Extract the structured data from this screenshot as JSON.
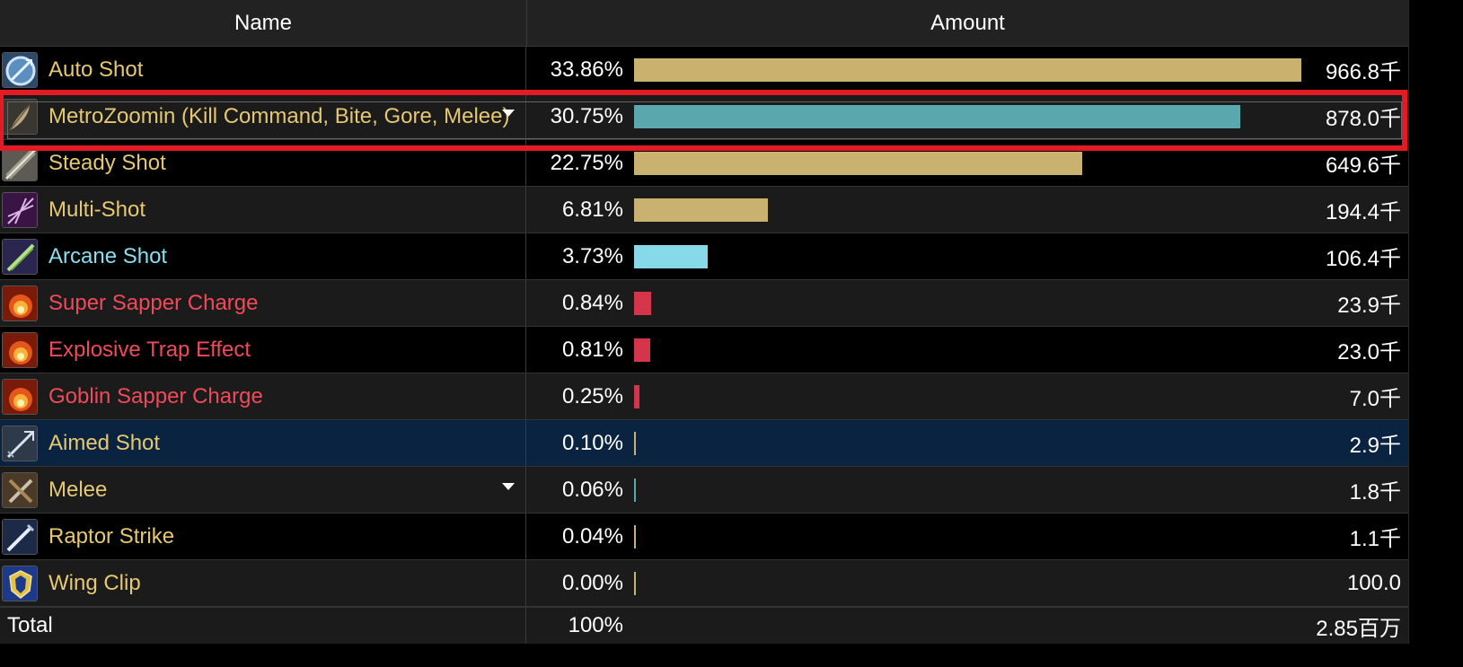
{
  "header": {
    "name": "Name",
    "amount": "Amount"
  },
  "rows": [
    {
      "name": "Auto Shot",
      "pct": "33.86%",
      "value": "966.8千",
      "color": "#e5c870",
      "bar_color": "#c9b16f",
      "fraction": 1.0,
      "icon": "auto-shot-icon",
      "style": "odd"
    },
    {
      "name": "MetroZoomin (Kill Command, Bite, Gore, Melee)",
      "pct": "30.75%",
      "value": "878.0千",
      "color": "#e5c870",
      "bar_color": "#5aa7ad",
      "fraction": 0.908,
      "icon": "pet-feather-icon",
      "style": "even",
      "caret": true
    },
    {
      "name": "Steady Shot",
      "pct": "22.75%",
      "value": "649.6千",
      "color": "#e5c870",
      "bar_color": "#c9b16f",
      "fraction": 0.672,
      "icon": "steady-shot-icon",
      "style": "odd"
    },
    {
      "name": "Multi-Shot",
      "pct": "6.81%",
      "value": "194.4千",
      "color": "#e5c870",
      "bar_color": "#c9b16f",
      "fraction": 0.201,
      "icon": "multi-shot-icon",
      "style": "even"
    },
    {
      "name": "Arcane Shot",
      "pct": "3.73%",
      "value": "106.4千",
      "color": "#89def0",
      "bar_color": "#86d9e9",
      "fraction": 0.11,
      "icon": "arcane-shot-icon",
      "style": "odd"
    },
    {
      "name": "Super Sapper Charge",
      "pct": "0.84%",
      "value": "23.9千",
      "color": "#f04a5a",
      "bar_color": "#d5354a",
      "fraction": 0.025,
      "icon": "fire-explosion-icon",
      "style": "even"
    },
    {
      "name": "Explosive Trap Effect",
      "pct": "0.81%",
      "value": "23.0千",
      "color": "#f04a5a",
      "bar_color": "#d5354a",
      "fraction": 0.024,
      "icon": "fire-explosion-icon",
      "style": "odd"
    },
    {
      "name": "Goblin Sapper Charge",
      "pct": "0.25%",
      "value": "7.0千",
      "color": "#f04a5a",
      "bar_color": "#d5354a",
      "fraction": 0.008,
      "icon": "fire-explosion-icon",
      "style": "even"
    },
    {
      "name": "Aimed Shot",
      "pct": "0.10%",
      "value": "2.9千",
      "color": "#e5c870",
      "bar_color": "#c9b16f",
      "fraction": 0.003,
      "icon": "aimed-shot-icon",
      "style": "sel"
    },
    {
      "name": "Melee",
      "pct": "0.06%",
      "value": "1.8千",
      "color": "#e5c870",
      "bar_color": "#5aa7ad",
      "fraction": 0.002,
      "icon": "melee-icon",
      "style": "even",
      "caret": true
    },
    {
      "name": "Raptor Strike",
      "pct": "0.04%",
      "value": "1.1千",
      "color": "#e5c870",
      "bar_color": "#c9b16f",
      "fraction": 0.001,
      "icon": "raptor-strike-icon",
      "style": "odd"
    },
    {
      "name": "Wing Clip",
      "pct": "0.00%",
      "value": "100.0",
      "color": "#e5c870",
      "bar_color": "#c9b16f",
      "fraction": 0.0,
      "icon": "alliance-crest-icon",
      "style": "even"
    }
  ],
  "total": {
    "label": "Total",
    "pct": "100%",
    "value": "2.85百万"
  }
}
